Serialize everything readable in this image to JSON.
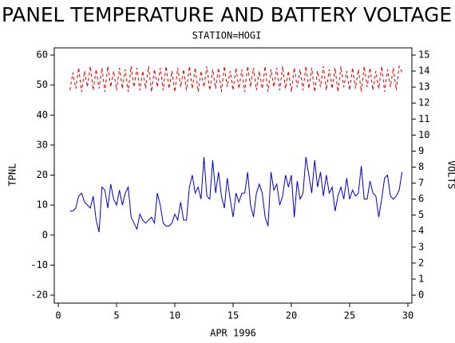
{
  "chart_data": {
    "type": "line",
    "title": "PANEL TEMPERATURE AND BATTERY VOLTAGE",
    "subtitle": "STATION=HOGI",
    "x_label": "APR 1996",
    "y_label": "TPNL",
    "y2_label": "VOLTS",
    "xlim": [
      0,
      30
    ],
    "xticks": [
      0,
      5,
      10,
      15,
      20,
      25,
      30
    ],
    "ylim": [
      -20,
      60
    ],
    "yticks": [
      -20,
      -10,
      0,
      10,
      20,
      30,
      40,
      50,
      60
    ],
    "y2lim": [
      0,
      15
    ],
    "y2ticks": [
      0,
      1,
      2,
      3,
      4,
      5,
      6,
      7,
      8,
      9,
      10,
      11,
      12,
      13,
      14,
      15
    ],
    "grid": false,
    "x": [
      1,
      1.25,
      1.5,
      1.75,
      2,
      2.25,
      2.5,
      2.75,
      3,
      3.25,
      3.5,
      3.75,
      4,
      4.25,
      4.5,
      4.75,
      5,
      5.25,
      5.5,
      5.75,
      6,
      6.25,
      6.5,
      6.75,
      7,
      7.25,
      7.5,
      7.75,
      8,
      8.25,
      8.5,
      8.75,
      9,
      9.25,
      9.5,
      9.75,
      10,
      10.25,
      10.5,
      10.75,
      11,
      11.25,
      11.5,
      11.75,
      12,
      12.25,
      12.5,
      12.75,
      13,
      13.25,
      13.5,
      13.75,
      14,
      14.25,
      14.5,
      14.75,
      15,
      15.25,
      15.5,
      15.75,
      16,
      16.25,
      16.5,
      16.75,
      17,
      17.25,
      17.5,
      17.75,
      18,
      18.25,
      18.5,
      18.75,
      19,
      19.25,
      19.5,
      19.75,
      20,
      20.25,
      20.5,
      20.75,
      21,
      21.25,
      21.5,
      21.75,
      22,
      22.25,
      22.5,
      22.75,
      23,
      23.25,
      23.5,
      23.75,
      24,
      24.25,
      24.5,
      24.75,
      25,
      25.25,
      25.5,
      25.75,
      26,
      26.25,
      26.5,
      26.75,
      27,
      27.25,
      27.5,
      27.75,
      28,
      28.25,
      28.5,
      28.75,
      29,
      29.25,
      29.5
    ],
    "series": [
      {
        "color": "#0000cc",
        "dashed": false,
        "values": [
          8,
          8,
          9,
          13,
          14,
          11,
          10,
          9,
          13,
          5,
          1,
          16,
          15,
          9,
          17,
          12,
          10,
          15,
          10,
          14,
          16,
          6,
          4,
          2,
          7,
          5,
          4,
          5,
          6,
          4,
          14,
          10,
          4,
          3,
          3,
          4,
          7,
          5,
          11,
          5,
          5,
          16,
          20,
          14,
          16,
          12,
          26,
          13,
          12,
          25,
          14,
          21,
          13,
          9,
          19,
          12,
          6,
          14,
          11,
          14,
          14,
          21,
          10,
          6,
          14,
          17,
          14,
          6,
          3,
          21,
          15,
          17,
          10,
          13,
          20,
          16,
          20,
          6,
          18,
          12,
          14,
          26,
          20,
          14,
          25,
          16,
          21,
          13,
          20,
          14,
          16,
          8,
          13,
          16,
          12,
          19,
          12,
          15,
          13,
          14,
          23,
          12,
          12,
          18,
          14,
          13,
          6,
          12,
          19,
          20,
          13,
          12,
          13,
          15,
          21
        ]
      },
      {
        "color": "#dd0000",
        "dashed": true,
        "axis": "y2",
        "values": [
          12.8,
          13.9,
          12.9,
          14.2,
          12.7,
          14.0,
          13.0,
          14.3,
          12.8,
          14.1,
          12.9,
          14.2,
          12.7,
          14.3,
          13.0,
          14.0,
          12.8,
          14.2,
          12.9,
          14.1,
          12.7,
          14.3,
          13.0,
          14.2,
          12.8,
          14.0,
          12.9,
          14.3,
          12.7,
          14.1,
          13.0,
          14.2,
          12.8,
          14.3,
          12.9,
          14.0,
          12.7,
          14.2,
          13.0,
          14.1,
          12.8,
          14.3,
          12.9,
          14.2,
          12.7,
          14.0,
          13.0,
          14.3,
          12.8,
          14.1,
          12.9,
          14.2,
          12.7,
          14.3,
          13.0,
          14.0,
          12.8,
          14.2,
          12.9,
          14.1,
          12.7,
          14.3,
          13.0,
          14.2,
          12.8,
          14.0,
          12.9,
          14.3,
          12.7,
          14.1,
          13.0,
          14.2,
          12.8,
          14.3,
          12.9,
          14.0,
          12.7,
          14.2,
          13.0,
          14.1,
          12.8,
          14.3,
          12.9,
          14.2,
          12.7,
          14.0,
          13.0,
          14.3,
          12.8,
          14.1,
          12.9,
          14.2,
          12.7,
          14.3,
          13.0,
          14.0,
          12.8,
          14.2,
          12.9,
          14.1,
          12.7,
          14.3,
          13.0,
          14.2,
          12.8,
          14.0,
          12.9,
          14.3,
          12.7,
          14.1,
          13.0,
          14.2,
          12.8,
          14.3,
          13.9
        ]
      }
    ]
  }
}
